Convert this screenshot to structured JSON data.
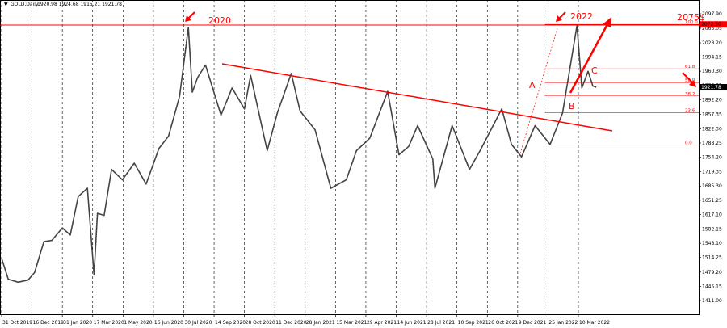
{
  "chart_header": {
    "symbol_label": "GOLD,Daily",
    "ohlc_label": "1920.98 1924.68 1915.21 1921.78"
  },
  "colors": {
    "price_line": "#444444",
    "annotation": "#ff0000",
    "grid": "#000000",
    "axis": "#000000"
  },
  "chart_data": {
    "type": "line",
    "symbol": "GOLD",
    "timeframe": "Daily",
    "ohlc_last": {
      "open": 1920.98,
      "high": 1924.68,
      "low": 1915.21,
      "close": 1921.78
    },
    "x_tick_labels": [
      "31 Oct 2019",
      "16 Dec 2019",
      "31 Jan 2020",
      "17 Mar 2020",
      "1 May 2020",
      "16 Jun 2020",
      "30 Jul 2020",
      "14 Sep 2020",
      "28 Oct 2020",
      "11 Dec 2020",
      "28 Jan 2021",
      "15 Mar 2021",
      "29 Apr 2021",
      "14 Jun 2021",
      "28 Jul 2021",
      "10 Sep 2021",
      "26 Oct 2021",
      "9 Dec 2021",
      "25 Jan 2022",
      "10 Mar 2022"
    ],
    "y_tick_labels": [
      "2097.90",
      "2063.05",
      "2028.20",
      "1994.15",
      "1960.30",
      "1926.25",
      "1892.20",
      "1857.35",
      "1822.30",
      "1788.25",
      "1754.20",
      "1719.35",
      "1685.30",
      "1651.25",
      "1617.10",
      "1582.15",
      "1548.10",
      "1514.25",
      "1479.20",
      "1445.15",
      "1411.00"
    ],
    "ylim": [
      1411.0,
      2097.9
    ],
    "xlim": [
      "2019-10-31",
      "2022-04-15"
    ],
    "price_series": [
      [
        "2019-10-31",
        1512
      ],
      [
        "2019-11-10",
        1462
      ],
      [
        "2019-11-25",
        1455
      ],
      [
        "2019-12-10",
        1460
      ],
      [
        "2019-12-20",
        1478
      ],
      [
        "2020-01-03",
        1552
      ],
      [
        "2020-01-15",
        1555
      ],
      [
        "2020-01-31",
        1585
      ],
      [
        "2020-02-12",
        1568
      ],
      [
        "2020-02-24",
        1660
      ],
      [
        "2020-03-09",
        1680
      ],
      [
        "2020-03-19",
        1472
      ],
      [
        "2020-03-24",
        1620
      ],
      [
        "2020-04-03",
        1615
      ],
      [
        "2020-04-14",
        1725
      ],
      [
        "2020-04-30",
        1700
      ],
      [
        "2020-05-18",
        1740
      ],
      [
        "2020-06-05",
        1690
      ],
      [
        "2020-06-24",
        1775
      ],
      [
        "2020-07-08",
        1805
      ],
      [
        "2020-07-24",
        1900
      ],
      [
        "2020-08-06",
        2065
      ],
      [
        "2020-08-12",
        1910
      ],
      [
        "2020-08-20",
        1945
      ],
      [
        "2020-09-01",
        1975
      ],
      [
        "2020-09-24",
        1855
      ],
      [
        "2020-10-10",
        1920
      ],
      [
        "2020-10-28",
        1870
      ],
      [
        "2020-11-06",
        1950
      ],
      [
        "2020-11-30",
        1770
      ],
      [
        "2020-12-15",
        1860
      ],
      [
        "2021-01-06",
        1955
      ],
      [
        "2021-01-20",
        1865
      ],
      [
        "2021-02-12",
        1820
      ],
      [
        "2021-03-08",
        1680
      ],
      [
        "2021-03-31",
        1700
      ],
      [
        "2021-04-15",
        1770
      ],
      [
        "2021-05-05",
        1800
      ],
      [
        "2021-06-01",
        1912
      ],
      [
        "2021-06-18",
        1760
      ],
      [
        "2021-07-02",
        1780
      ],
      [
        "2021-07-15",
        1830
      ],
      [
        "2021-08-06",
        1750
      ],
      [
        "2021-08-09",
        1680
      ],
      [
        "2021-09-03",
        1830
      ],
      [
        "2021-09-29",
        1725
      ],
      [
        "2021-10-15",
        1770
      ],
      [
        "2021-11-16",
        1870
      ],
      [
        "2021-11-30",
        1785
      ],
      [
        "2021-12-15",
        1755
      ],
      [
        "2022-01-05",
        1830
      ],
      [
        "2022-01-28",
        1785
      ],
      [
        "2022-02-15",
        1860
      ],
      [
        "2022-03-08",
        2070
      ],
      [
        "2022-03-15",
        1920
      ],
      [
        "2022-03-24",
        1960
      ],
      [
        "2022-03-31",
        1925
      ],
      [
        "2022-04-05",
        1921.78
      ]
    ],
    "fibonacci_levels": [
      {
        "label": "100.0",
        "price": 2072.3
      },
      {
        "label": "61.8",
        "price": 1966.0
      },
      {
        "label": "50.0",
        "price": 1933.0
      },
      {
        "label": "38.2",
        "price": 1901.0
      },
      {
        "label": "23.6",
        "price": 1860.5
      },
      {
        "label": "0.0",
        "price": 1783.5
      }
    ],
    "current_price_label": "1921.78",
    "fib_top_price_label": "2072.30",
    "annotations": {
      "label_2020": "2020",
      "label_2022": "2022",
      "label_target": "2075$",
      "wave_a": "A",
      "wave_b": "B",
      "wave_c": "C"
    }
  }
}
